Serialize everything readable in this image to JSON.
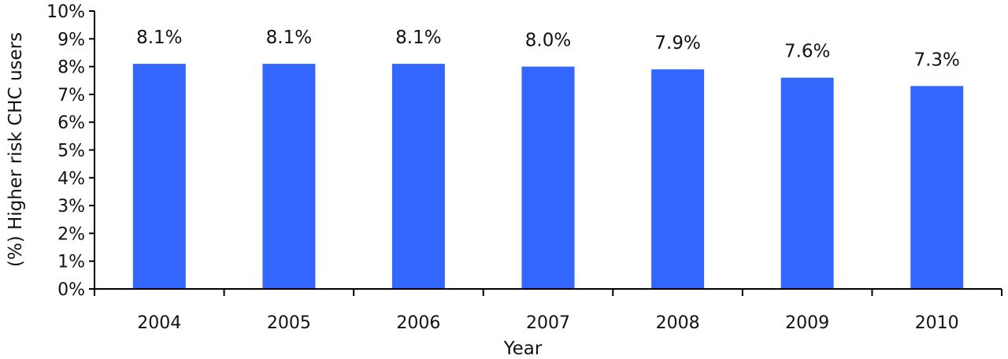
{
  "colors": {
    "bar": "#3366ff",
    "axis": "#000000",
    "background": "#ffffff"
  },
  "chart_data": {
    "type": "bar",
    "categories": [
      "2004",
      "2005",
      "2006",
      "2007",
      "2008",
      "2009",
      "2010"
    ],
    "values": [
      8.1,
      8.1,
      8.1,
      8.0,
      7.9,
      7.6,
      7.3
    ],
    "data_labels": [
      "8.1%",
      "8.1%",
      "8.1%",
      "8.0%",
      "7.9%",
      "7.6%",
      "7.3%"
    ],
    "title": "",
    "xlabel": "Year",
    "ylabel": "(%) Higher risk CHC users",
    "ylim": [
      0,
      10
    ],
    "yticks": [
      "0%",
      "1%",
      "2%",
      "3%",
      "4%",
      "5%",
      "6%",
      "7%",
      "8%",
      "9%",
      "10%"
    ],
    "grid": false,
    "legend": "none"
  }
}
